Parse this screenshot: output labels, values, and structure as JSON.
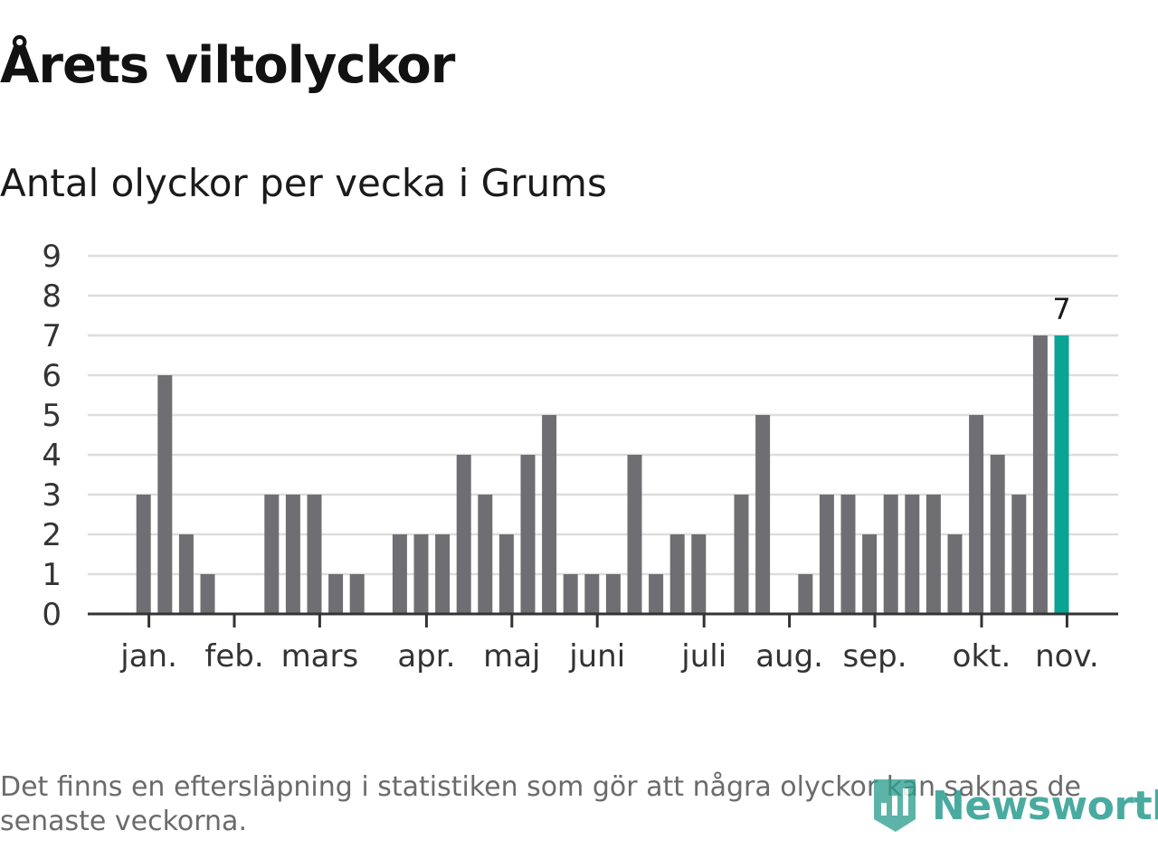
{
  "header": {
    "title": "Årets viltolyckor",
    "subtitle": "Antal olyckor per vecka i Grums"
  },
  "footer": {
    "note": "Det finns en eftersläpning i statistiken som gör att några olyckor kan saknas de senaste veckorna.",
    "logo_text": "Newsworthy"
  },
  "colors": {
    "bar": "#6f6e73",
    "highlight": "#0aa396",
    "grid": "#dddddd",
    "axis": "#333333",
    "logo": "#2a9d8f"
  },
  "chart_data": {
    "type": "bar",
    "title": "Årets viltolyckor",
    "subtitle": "Antal olyckor per vecka i Grums",
    "xlabel": "",
    "ylabel": "",
    "ylim": [
      0,
      9
    ],
    "yticks": [
      0,
      1,
      2,
      3,
      4,
      5,
      6,
      7,
      8,
      9
    ],
    "grid": true,
    "weeks": [
      1,
      2,
      3,
      4,
      5,
      6,
      7,
      8,
      9,
      10,
      11,
      12,
      13,
      14,
      15,
      16,
      17,
      18,
      19,
      20,
      21,
      22,
      23,
      24,
      25,
      26,
      27,
      28,
      29,
      30,
      31,
      32,
      33,
      34,
      35,
      36,
      37,
      38,
      39,
      40,
      41,
      42,
      43,
      44,
      45,
      46
    ],
    "values": [
      0,
      0,
      3,
      6,
      2,
      1,
      0,
      0,
      3,
      3,
      3,
      1,
      1,
      0,
      2,
      2,
      2,
      4,
      3,
      2,
      4,
      5,
      1,
      1,
      1,
      4,
      1,
      2,
      2,
      0,
      3,
      5,
      0,
      1,
      3,
      3,
      2,
      3,
      3,
      3,
      2,
      5,
      4,
      3,
      7,
      7
    ],
    "highlight_week": 46,
    "highlight_label": "7",
    "month_labels": [
      {
        "label": "jan.",
        "week": 3.25
      },
      {
        "label": "feb.",
        "week": 7.25
      },
      {
        "label": "mars",
        "week": 11.25
      },
      {
        "label": "apr.",
        "week": 16.25
      },
      {
        "label": "maj",
        "week": 20.25
      },
      {
        "label": "juni",
        "week": 24.25
      },
      {
        "label": "juli",
        "week": 29.25
      },
      {
        "label": "aug.",
        "week": 33.25
      },
      {
        "label": "sep.",
        "week": 37.25
      },
      {
        "label": "okt.",
        "week": 42.25
      },
      {
        "label": "nov.",
        "week": 46.25
      }
    ]
  }
}
